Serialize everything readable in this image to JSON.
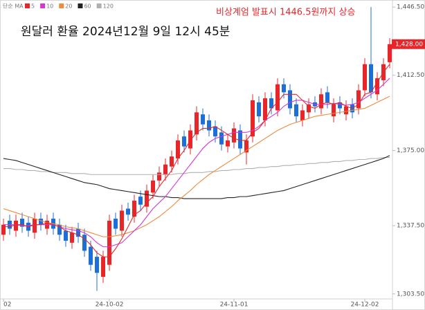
{
  "chart_data": {
    "type": "candlestick",
    "title": "원달러 환율 2024년12월 9일 12시 45분",
    "annotation": "비상계엄 발표시 1446.5원까지 상승",
    "legend_title": "단순 MA",
    "last_price": {
      "value": 1428,
      "label": "1,428.00"
    },
    "up_color": "#e8262a",
    "down_color": "#1d6fd8",
    "ylim": [
      1301,
      1450
    ],
    "yticks": [
      {
        "value": 1303.5,
        "label": "1,303.50"
      },
      {
        "value": 1337.5,
        "label": "1,337.50"
      },
      {
        "value": 1375,
        "label": "1,375.00"
      },
      {
        "value": 1412.5,
        "label": "1,412.50"
      },
      {
        "value": 1446.5,
        "label": "1,446.50"
      }
    ],
    "categories": [
      "02",
      null,
      null,
      null,
      null,
      null,
      null,
      null,
      null,
      null,
      null,
      null,
      null,
      null,
      null,
      null,
      null,
      "24-10-02",
      null,
      null,
      null,
      null,
      null,
      null,
      null,
      null,
      null,
      null,
      null,
      null,
      null,
      null,
      null,
      null,
      null,
      null,
      null,
      "24-11-01",
      null,
      null,
      null,
      null,
      null,
      null,
      null,
      null,
      null,
      null,
      null,
      null,
      null,
      null,
      null,
      null,
      null,
      null,
      null,
      null,
      "24-12-02",
      null,
      null,
      null,
      null
    ],
    "open": [
      1333,
      1340,
      1335,
      1341,
      1339,
      1334,
      1341,
      1336,
      1341,
      1338,
      1335,
      1329,
      1336,
      1333,
      1327,
      1322,
      1312,
      1318,
      1341,
      1335,
      1346,
      1342,
      1352,
      1347,
      1354,
      1360,
      1363,
      1367,
      1371,
      1382,
      1376,
      1383,
      1393,
      1390,
      1387,
      1384,
      1377,
      1379,
      1385,
      1374,
      1382,
      1399,
      1390,
      1401,
      1395,
      1408,
      1405,
      1398,
      1390,
      1394,
      1399,
      1396,
      1404,
      1392,
      1399,
      1393,
      1398,
      1396,
      1405,
      1418,
      1403,
      1410,
      1419
    ],
    "high": [
      1341,
      1343,
      1343,
      1344,
      1342,
      1344,
      1344,
      1343,
      1344,
      1341,
      1338,
      1337,
      1339,
      1336,
      1330,
      1325,
      1325,
      1343,
      1344,
      1348,
      1349,
      1353,
      1355,
      1358,
      1363,
      1367,
      1371,
      1375,
      1383,
      1385,
      1388,
      1397,
      1396,
      1393,
      1390,
      1387,
      1383,
      1389,
      1388,
      1383,
      1403,
      1402,
      1404,
      1404,
      1411,
      1411,
      1408,
      1401,
      1398,
      1401,
      1402,
      1406,
      1407,
      1401,
      1402,
      1400,
      1401,
      1408,
      1421,
      1446.5,
      1414,
      1421,
      1431
    ],
    "low": [
      1330,
      1333,
      1332,
      1334,
      1332,
      1331,
      1335,
      1333,
      1333,
      1330,
      1327,
      1326,
      1329,
      1322,
      1315,
      1305,
      1309,
      1315,
      1333,
      1332,
      1340,
      1339,
      1345,
      1344,
      1351,
      1357,
      1360,
      1364,
      1368,
      1374,
      1373,
      1380,
      1385,
      1382,
      1379,
      1375,
      1374,
      1376,
      1373,
      1368,
      1379,
      1389,
      1387,
      1393,
      1392,
      1401,
      1393,
      1389,
      1387,
      1391,
      1394,
      1393,
      1396,
      1389,
      1393,
      1390,
      1391,
      1393,
      1402,
      1401,
      1400,
      1407,
      1416
    ],
    "close": [
      1338,
      1336,
      1340,
      1337,
      1335,
      1341,
      1338,
      1340,
      1336,
      1333,
      1330,
      1334,
      1332,
      1325,
      1318,
      1314,
      1322,
      1340,
      1336,
      1345,
      1343,
      1350,
      1348,
      1355,
      1360,
      1364,
      1368,
      1372,
      1380,
      1377,
      1385,
      1394,
      1388,
      1385,
      1382,
      1378,
      1380,
      1386,
      1376,
      1380,
      1400,
      1392,
      1401,
      1396,
      1408,
      1404,
      1396,
      1392,
      1395,
      1398,
      1397,
      1403,
      1399,
      1398,
      1396,
      1397,
      1394,
      1405,
      1418,
      1404,
      1411,
      1418,
      1428
    ],
    "series": [
      {
        "name": "5",
        "color": "#e8262a",
        "values": [
          1337,
          1337,
          1338,
          1338,
          1337,
          1338,
          1338,
          1339,
          1338,
          1337,
          1335,
          1334,
          1333,
          1331,
          1328,
          1324,
          1322,
          1322,
          1326,
          1331,
          1337,
          1343,
          1345,
          1349,
          1352,
          1357,
          1361,
          1365,
          1371,
          1375,
          1380,
          1384,
          1386,
          1386,
          1387,
          1385,
          1383,
          1381,
          1380,
          1380,
          1384,
          1386,
          1390,
          1396,
          1399,
          1403,
          1403,
          1403,
          1400,
          1397,
          1396,
          1398,
          1399,
          1398,
          1399,
          1397,
          1396,
          1398,
          1403,
          1404,
          1409,
          1414,
          1418
        ]
      },
      {
        "name": "10",
        "color": "#d437d4",
        "values": [
          1338,
          1338,
          1338,
          1337.5,
          1337.5,
          1338,
          1338,
          1338,
          1338,
          1337,
          1336,
          1335.5,
          1335,
          1334,
          1332,
          1329,
          1327,
          1327,
          1328,
          1329,
          1332,
          1335,
          1338,
          1342,
          1346,
          1349,
          1352,
          1356,
          1360,
          1364,
          1368,
          1372,
          1376,
          1379,
          1381,
          1382,
          1383,
          1384,
          1384,
          1384,
          1385,
          1387,
          1390,
          1392,
          1394,
          1397,
          1399,
          1400,
          1400,
          1399,
          1398,
          1398,
          1398,
          1398.5,
          1398,
          1397.5,
          1398,
          1399,
          1401,
          1403,
          1405,
          1408,
          1411
        ]
      },
      {
        "name": "20",
        "color": "#f08a3c",
        "values": [
          1346,
          1345,
          1344,
          1343,
          1342,
          1341,
          1340,
          1339,
          1338.5,
          1338,
          1337,
          1336.5,
          1336,
          1335,
          1334,
          1333,
          1332,
          1332,
          1332.5,
          1333,
          1334,
          1335,
          1336.5,
          1338,
          1340,
          1342,
          1344.5,
          1347,
          1350,
          1352.5,
          1355,
          1358,
          1360.5,
          1363,
          1365,
          1367,
          1369,
          1371,
          1373,
          1375,
          1377,
          1379,
          1381,
          1383,
          1385,
          1386.5,
          1388,
          1389,
          1390,
          1391,
          1392,
          1392.5,
          1393,
          1393.5,
          1394,
          1394.5,
          1395,
          1395.5,
          1396,
          1397.5,
          1399,
          1400.5,
          1402
        ]
      },
      {
        "name": "60",
        "color": "#222222",
        "values": [
          1371,
          1370.5,
          1370,
          1369,
          1368,
          1367,
          1366,
          1365,
          1364,
          1363,
          1362,
          1361,
          1360,
          1359,
          1358.5,
          1358,
          1357,
          1356,
          1355.5,
          1355,
          1354.5,
          1354,
          1353.5,
          1353,
          1352.5,
          1352,
          1352,
          1351.5,
          1351.5,
          1351,
          1351,
          1351,
          1351,
          1351,
          1351,
          1351,
          1351.5,
          1351.5,
          1352,
          1352,
          1352.5,
          1353,
          1353.5,
          1354,
          1354.5,
          1355,
          1356,
          1357,
          1358,
          1359,
          1360,
          1361,
          1362,
          1363,
          1364,
          1365,
          1366,
          1367,
          1368,
          1369,
          1370,
          1371,
          1372.5
        ]
      },
      {
        "name": "120",
        "color": "#b0b0b0",
        "values": [
          1366,
          1366,
          1365.5,
          1365.5,
          1365,
          1365,
          1364.5,
          1364.5,
          1364,
          1364,
          1364,
          1363.5,
          1363.5,
          1363.5,
          1363,
          1363,
          1363,
          1363,
          1363,
          1363,
          1363,
          1363,
          1363,
          1363,
          1363,
          1363,
          1363,
          1363,
          1363.5,
          1363.5,
          1364,
          1364,
          1364,
          1364.5,
          1364.5,
          1365,
          1365,
          1365.5,
          1365.5,
          1366,
          1366,
          1366.5,
          1366.5,
          1367,
          1367,
          1367.5,
          1367.5,
          1368,
          1368,
          1368.5,
          1368.5,
          1369,
          1369,
          1369.5,
          1369.5,
          1370,
          1370,
          1370.5,
          1370.5,
          1371,
          1371,
          1371.5,
          1371.5
        ]
      }
    ]
  }
}
